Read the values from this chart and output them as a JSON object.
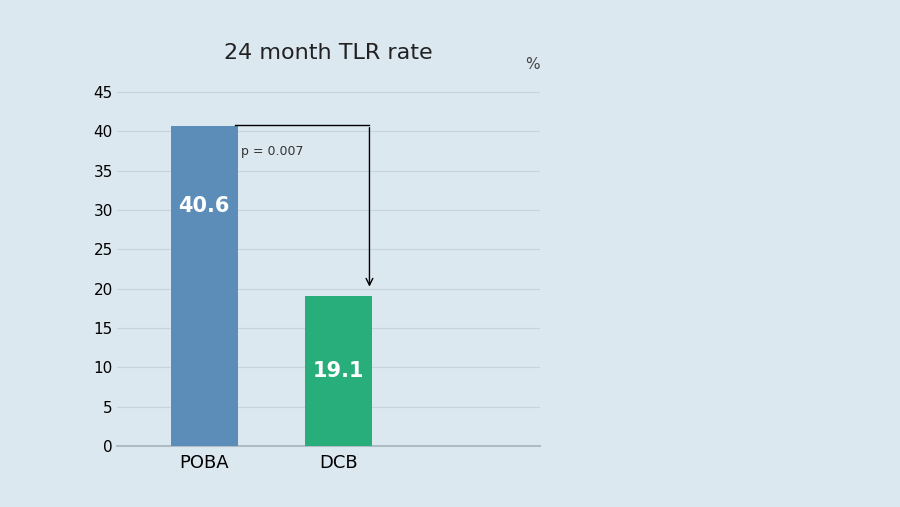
{
  "title": "24 month TLR rate",
  "categories": [
    "POBA",
    "DCB"
  ],
  "values": [
    40.6,
    19.1
  ],
  "bar_colors": [
    "#5b8db8",
    "#27ae7a"
  ],
  "bar_labels": [
    "40.6",
    "19.1"
  ],
  "ylim": [
    0,
    47
  ],
  "yticks": [
    0,
    5,
    10,
    15,
    20,
    25,
    30,
    35,
    40,
    45
  ],
  "ylabel_unit": "%",
  "p_text": "p = 0.007",
  "background_color": "#dce8f0",
  "grid_color": "#c5d4dd",
  "title_fontsize": 16,
  "label_fontsize": 13,
  "tick_fontsize": 11,
  "bar_label_fontsize": 15,
  "x_positions": [
    1.0,
    2.0
  ],
  "bar_width": 0.5,
  "xlim": [
    0.35,
    3.5
  ]
}
